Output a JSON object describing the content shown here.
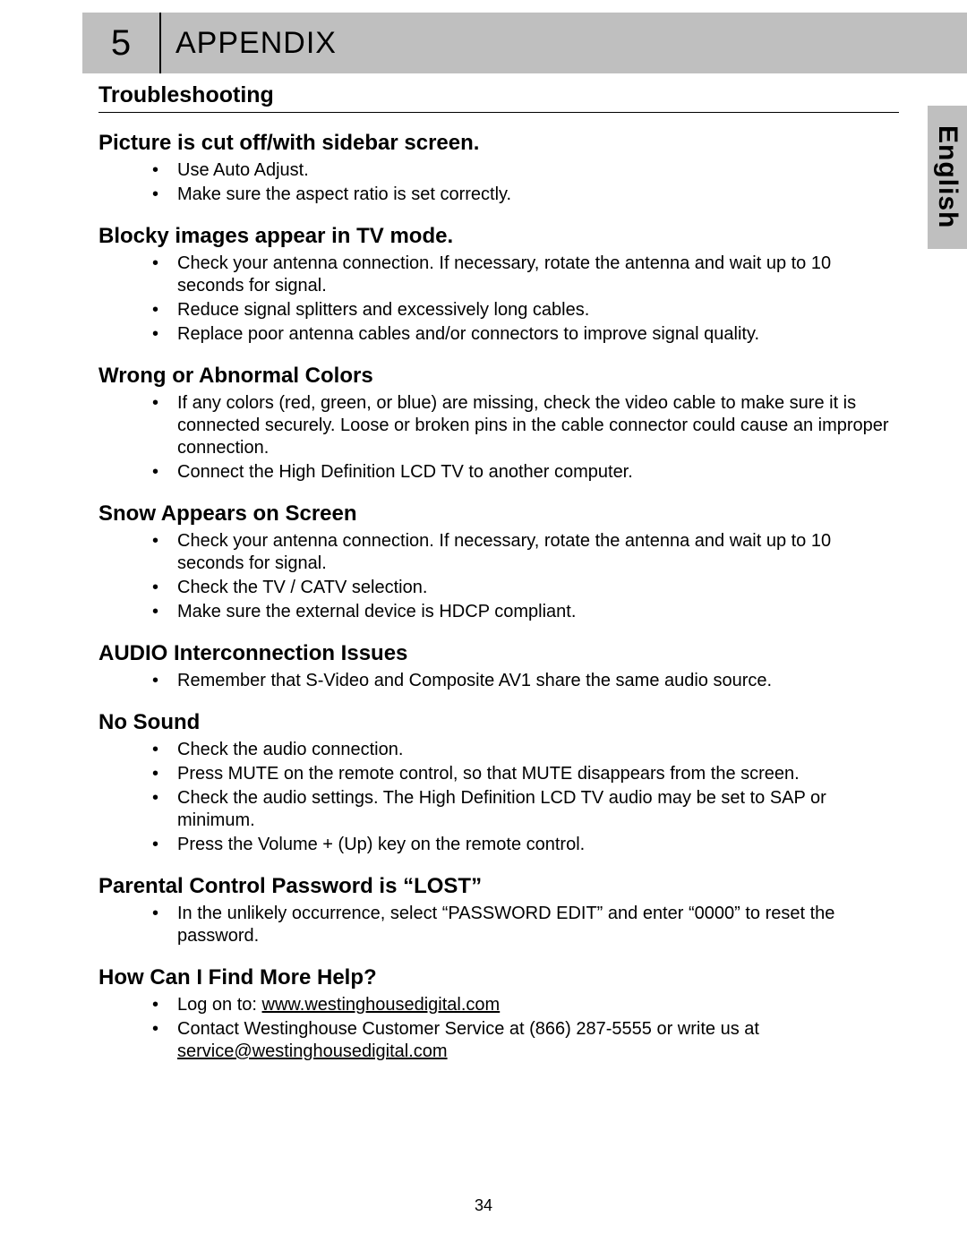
{
  "header": {
    "chapter_number": "5",
    "chapter_title": "APPENDIX"
  },
  "side_tab": {
    "label": "English"
  },
  "main_title": "Troubleshooting",
  "sections": [
    {
      "heading": "Picture is cut off/with sidebar screen.",
      "items": [
        "Use Auto Adjust.",
        "Make sure the aspect ratio is set correctly."
      ]
    },
    {
      "heading": "Blocky images appear in TV mode.",
      "items": [
        "Check your antenna connection. If necessary, rotate the antenna and wait up to 10 seconds for signal.",
        "Reduce signal splitters and excessively long cables.",
        "Replace poor antenna cables and/or connectors to improve signal quality."
      ]
    },
    {
      "heading": "Wrong or Abnormal Colors",
      "items": [
        "If any colors (red, green, or blue) are missing, check the video cable to make sure it is connected securely. Loose or broken pins in the cable connector could cause an improper connection.",
        "Connect the High Definition LCD TV to another computer."
      ]
    },
    {
      "heading": "Snow Appears on Screen",
      "items": [
        "Check your antenna connection. If necessary, rotate the antenna and wait up to 10 seconds for signal.",
        "Check the TV / CATV selection.",
        "Make sure the external device is HDCP compliant."
      ]
    },
    {
      "heading": "AUDIO Interconnection Issues",
      "items": [
        "Remember that S-Video and Composite AV1 share the same audio source."
      ]
    },
    {
      "heading": "No Sound",
      "items": [
        "Check the audio connection.",
        "Press MUTE on the remote control, so that MUTE disappears from the screen.",
        "Check the audio settings. The High Definition LCD TV audio may be set to SAP or minimum.",
        "Press the Volume + (Up) key on the remote control."
      ]
    },
    {
      "heading": "Parental Control Password is “LOST”",
      "items": [
        "In the unlikely occurrence, select “PASSWORD EDIT” and enter “0000” to reset the password."
      ]
    }
  ],
  "help_section": {
    "heading": "How Can I Find More Help?",
    "log_prefix": "Log on to: ",
    "website": "www.westinghousedigital.com",
    "contact_prefix": "Contact Westinghouse Customer Service at (866) 287-5555 or write us at ",
    "email": "service@westinghousedigital.com"
  },
  "page_number": "34"
}
